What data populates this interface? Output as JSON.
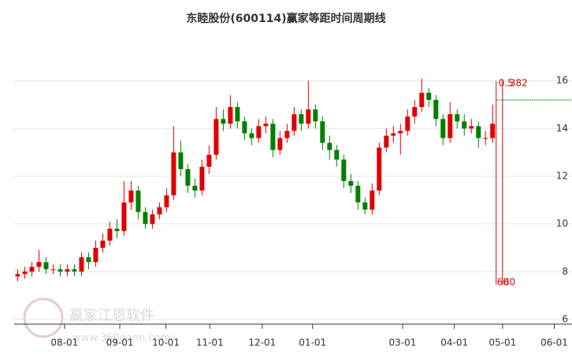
{
  "chart_data": {
    "type": "candlestick",
    "title": "东睦股份(600114)赢家等距时间周期线",
    "watermark": [
      "赢家江恩软件",
      "www.360gann.com"
    ],
    "up_color": "#e00000",
    "down_color": "#008000",
    "grid": true,
    "ylim": [
      5.8,
      16.75
    ],
    "yticks": [
      6,
      8,
      10,
      12,
      14,
      16
    ],
    "xlim": [
      0,
      78.7
    ],
    "xticks": [
      {
        "value": 7.1,
        "label": "08-01"
      },
      {
        "value": 14.9,
        "label": "09-01"
      },
      {
        "value": 21.4,
        "label": "10-01"
      },
      {
        "value": 27.6,
        "label": "11-01"
      },
      {
        "value": 35.0,
        "label": "12-01"
      },
      {
        "value": 42.1,
        "label": "01-01"
      },
      {
        "value": 54.8,
        "label": "03-01"
      },
      {
        "value": 62.1,
        "label": "04-01"
      },
      {
        "value": 68.9,
        "label": "05-01"
      },
      {
        "value": 76.2,
        "label": "06-01"
      }
    ],
    "open": [
      7.8,
      7.9,
      8.0,
      8.2,
      8.4,
      8.1,
      8.1,
      8.0,
      8.1,
      8.0,
      8.6,
      8.4,
      9.0,
      9.3,
      9.8,
      9.7,
      10.9,
      11.4,
      10.5,
      10.0,
      10.4,
      10.7,
      11.2,
      13.0,
      12.3,
      11.6,
      11.4,
      12.4,
      12.9,
      14.4,
      14.2,
      14.9,
      14.3,
      13.8,
      13.6,
      14.1,
      14.2,
      13.1,
      13.6,
      13.9,
      14.6,
      14.2,
      14.8,
      14.3,
      13.4,
      13.1,
      12.7,
      11.8,
      11.6,
      10.9,
      10.6,
      11.4,
      13.2,
      13.7,
      13.8,
      13.9,
      14.5,
      14.9,
      15.5,
      15.2,
      14.4,
      13.6,
      14.6,
      14.3,
      14.0,
      14.1,
      13.6,
      13.6
    ],
    "close": [
      7.9,
      8.0,
      8.2,
      8.4,
      8.1,
      8.1,
      8.0,
      8.1,
      8.0,
      8.6,
      8.4,
      9.0,
      9.3,
      9.8,
      9.7,
      10.9,
      11.4,
      10.5,
      10.0,
      10.4,
      10.7,
      11.2,
      13.0,
      12.3,
      11.6,
      11.4,
      12.4,
      12.9,
      14.4,
      14.2,
      14.9,
      14.3,
      13.8,
      13.6,
      14.1,
      14.2,
      13.1,
      13.6,
      13.9,
      14.6,
      14.2,
      14.8,
      14.3,
      13.4,
      13.1,
      12.7,
      11.8,
      11.6,
      10.9,
      10.6,
      11.4,
      13.2,
      13.7,
      13.8,
      13.9,
      14.5,
      14.9,
      15.5,
      15.2,
      14.4,
      13.6,
      14.6,
      14.3,
      14.0,
      14.1,
      13.6,
      13.6,
      14.2
    ],
    "high": [
      8.1,
      8.2,
      8.4,
      8.9,
      8.6,
      8.3,
      8.3,
      8.3,
      8.3,
      8.8,
      8.8,
      9.3,
      9.6,
      10.1,
      10.2,
      11.8,
      11.8,
      11.6,
      10.7,
      10.6,
      10.9,
      11.5,
      14.1,
      13.5,
      12.5,
      11.9,
      12.7,
      13.3,
      14.9,
      14.8,
      15.4,
      15.1,
      14.5,
      14.0,
      14.4,
      14.5,
      14.4,
      13.9,
      14.2,
      14.9,
      14.8,
      16.0,
      15.0,
      14.5,
      13.7,
      13.3,
      12.9,
      12.1,
      11.8,
      11.1,
      11.7,
      13.4,
      14.0,
      14.1,
      14.2,
      14.8,
      15.2,
      16.1,
      15.7,
      15.4,
      14.6,
      15.1,
      14.8,
      14.6,
      14.4,
      14.3,
      13.9,
      15.0
    ],
    "low": [
      7.6,
      7.7,
      7.8,
      8.0,
      7.9,
      7.9,
      7.8,
      7.8,
      7.8,
      7.8,
      8.1,
      8.2,
      8.8,
      9.1,
      9.4,
      9.5,
      10.6,
      10.2,
      9.8,
      9.8,
      10.2,
      10.5,
      11.0,
      12.0,
      11.3,
      11.1,
      11.2,
      12.1,
      12.7,
      13.9,
      14.0,
      14.0,
      13.5,
      13.3,
      13.4,
      13.8,
      12.8,
      12.9,
      13.4,
      13.7,
      13.9,
      14.0,
      14.0,
      13.1,
      12.7,
      12.4,
      11.5,
      11.3,
      10.6,
      10.4,
      10.4,
      11.2,
      13.0,
      13.4,
      12.9,
      13.7,
      14.2,
      14.7,
      14.9,
      14.1,
      13.3,
      13.4,
      14.0,
      13.7,
      13.8,
      13.2,
      13.3,
      13.4
    ],
    "price_line": 15.2,
    "cycle_lines": [
      {
        "x": 68.0,
        "top_label": "0.5",
        "bottom_label": "60"
      },
      {
        "x": 68.9,
        "top_label": "382",
        "bottom_label": "80"
      }
    ]
  }
}
